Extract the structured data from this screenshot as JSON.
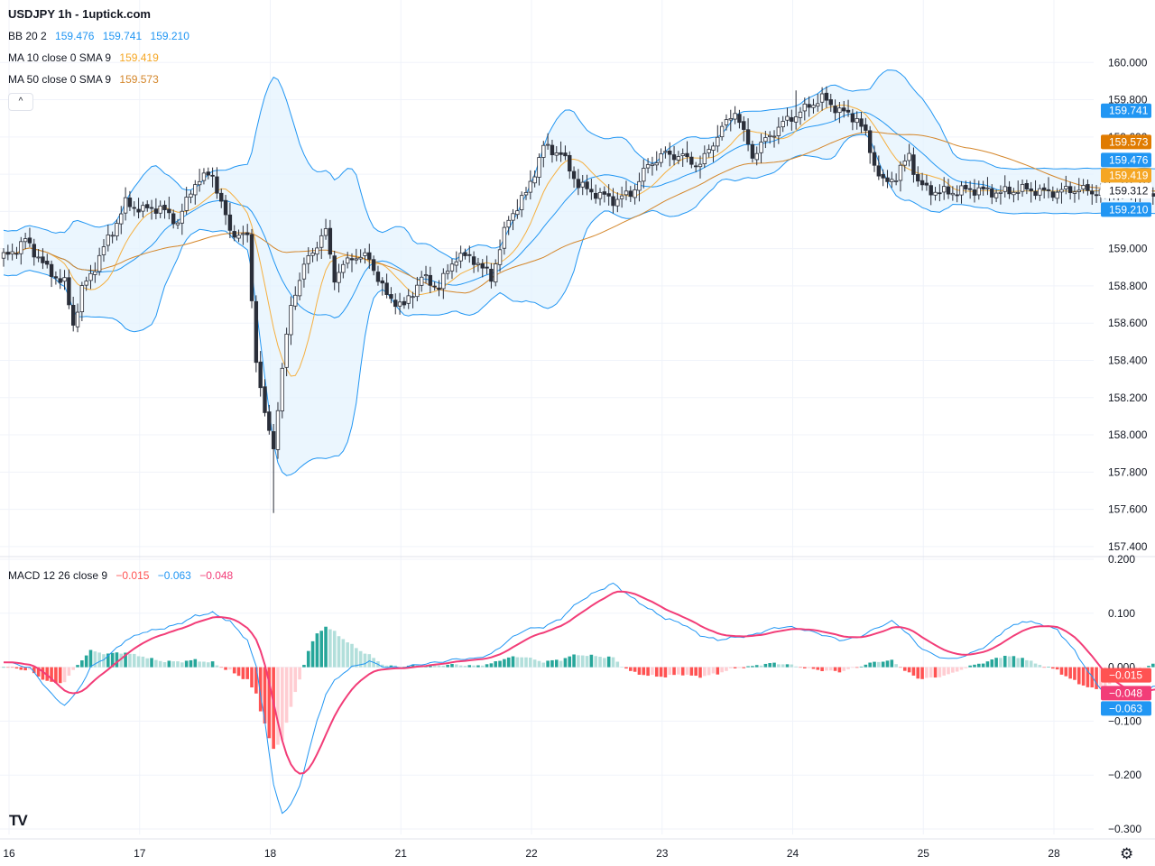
{
  "header": {
    "title": "USDJPY 1h - 1uptick.com",
    "bb": {
      "label": "BB 20 2",
      "mid": "159.476",
      "upper": "159.741",
      "lower": "159.210"
    },
    "ma10": {
      "label": "MA 10 close 0 SMA 9",
      "value": "159.419"
    },
    "ma50": {
      "label": "MA 50 close 0 SMA 9",
      "value": "159.573"
    },
    "macd": {
      "label": "MACD 12 26 close 9",
      "hist": "−0.015",
      "macd": "−0.063",
      "signal": "−0.048"
    }
  },
  "colors": {
    "up": "#ffffff",
    "down": "#2a2e39",
    "bb": "#2196f3",
    "bbFill": "#e3f2fd",
    "ma10": "#f5b041",
    "ma50": "#d4862a",
    "macdLine": "#2196f3",
    "signalLine": "#f23d78",
    "histUpStrong": "#26a69a",
    "histUpWeak": "#b2dfdb",
    "histDownStrong": "#ff5252",
    "histDownWeak": "#ffcdd2"
  },
  "chart_data": {
    "type": "candlestick",
    "price_axis": {
      "ticks": [
        "157.400",
        "157.600",
        "157.800",
        "158.000",
        "158.200",
        "158.400",
        "158.600",
        "158.800",
        "159.000",
        "159.200",
        "159.400",
        "159.600",
        "159.800",
        "160.000"
      ],
      "range": [
        157.38,
        160.2
      ]
    },
    "price_labels": [
      {
        "value": 159.741,
        "text": "159.741",
        "color": "#2196f3"
      },
      {
        "value": 159.573,
        "text": "159.573",
        "color": "#e07b00"
      },
      {
        "value": 159.476,
        "text": "159.476",
        "color": "#2196f3"
      },
      {
        "value": 159.419,
        "text": "159.419",
        "color": "#f5a623"
      },
      {
        "value": 159.312,
        "text": "159.312",
        "color": "#ffffff"
      },
      {
        "value": 159.21,
        "text": "159.210",
        "color": "#2196f3"
      }
    ],
    "macd_axis": {
      "ticks": [
        "0.200",
        "0.100",
        "0.000",
        "−0.100",
        "−0.200",
        "−0.300"
      ],
      "range": [
        -0.31,
        0.2
      ]
    },
    "macd_labels": [
      {
        "value": -0.015,
        "text": "−0.015",
        "color": "#ff5252"
      },
      {
        "value": -0.048,
        "text": "−0.048",
        "color": "#f23d78"
      },
      {
        "value": -0.063,
        "text": "−0.063",
        "color": "#2196f3"
      }
    ],
    "time_axis": [
      "16",
      "17",
      "18",
      "21",
      "22",
      "23",
      "24",
      "25",
      "28"
    ],
    "anchors": {
      "close": [
        [
          0,
          158.95
        ],
        [
          5,
          159.05
        ],
        [
          10,
          158.88
        ],
        [
          14,
          158.82
        ],
        [
          16,
          158.6
        ],
        [
          18,
          158.78
        ],
        [
          20,
          158.85
        ],
        [
          24,
          159.05
        ],
        [
          28,
          159.25
        ],
        [
          32,
          159.2
        ],
        [
          36,
          159.22
        ],
        [
          40,
          159.15
        ],
        [
          44,
          159.35
        ],
        [
          48,
          159.4
        ],
        [
          52,
          159.1
        ],
        [
          56,
          159.05
        ],
        [
          58,
          158.4
        ],
        [
          60,
          158.1
        ],
        [
          62,
          157.95
        ],
        [
          64,
          158.35
        ],
        [
          66,
          158.7
        ],
        [
          70,
          158.95
        ],
        [
          74,
          159.1
        ],
        [
          76,
          158.85
        ],
        [
          80,
          158.95
        ],
        [
          84,
          158.95
        ],
        [
          88,
          158.75
        ],
        [
          92,
          158.68
        ],
        [
          96,
          158.85
        ],
        [
          100,
          158.8
        ],
        [
          104,
          158.95
        ],
        [
          108,
          158.95
        ],
        [
          112,
          158.85
        ],
        [
          116,
          159.15
        ],
        [
          120,
          159.3
        ],
        [
          124,
          159.55
        ],
        [
          128,
          159.5
        ],
        [
          132,
          159.35
        ],
        [
          136,
          159.3
        ],
        [
          140,
          159.25
        ],
        [
          144,
          159.3
        ],
        [
          148,
          159.45
        ],
        [
          152,
          159.5
        ],
        [
          156,
          159.5
        ],
        [
          160,
          159.45
        ],
        [
          164,
          159.6
        ],
        [
          168,
          159.75
        ],
        [
          172,
          159.5
        ],
        [
          176,
          159.6
        ],
        [
          180,
          159.7
        ],
        [
          184,
          159.75
        ],
        [
          188,
          159.8
        ],
        [
          192,
          159.75
        ],
        [
          196,
          159.7
        ],
        [
          198,
          159.6
        ],
        [
          200,
          159.45
        ],
        [
          202,
          159.35
        ],
        [
          205,
          159.4
        ],
        [
          208,
          159.5
        ],
        [
          210,
          159.35
        ],
        [
          212,
          159.31
        ]
      ],
      "macd": [
        [
          0,
          0.01
        ],
        [
          3,
          0.005
        ],
        [
          6,
          0.0
        ],
        [
          9,
          -0.03
        ],
        [
          12,
          -0.06
        ],
        [
          14,
          -0.07
        ],
        [
          16,
          -0.055
        ],
        [
          18,
          -0.03
        ],
        [
          20,
          0.0
        ],
        [
          24,
          0.02
        ],
        [
          28,
          0.05
        ],
        [
          32,
          0.065
        ],
        [
          36,
          0.07
        ],
        [
          40,
          0.08
        ],
        [
          44,
          0.095
        ],
        [
          48,
          0.1
        ],
        [
          52,
          0.085
        ],
        [
          56,
          0.05
        ],
        [
          58,
          0.0
        ],
        [
          60,
          -0.1
        ],
        [
          62,
          -0.22
        ],
        [
          64,
          -0.27
        ],
        [
          66,
          -0.255
        ],
        [
          68,
          -0.22
        ],
        [
          70,
          -0.16
        ],
        [
          72,
          -0.1
        ],
        [
          74,
          -0.05
        ],
        [
          76,
          -0.025
        ],
        [
          78,
          -0.01
        ],
        [
          80,
          0.0
        ],
        [
          84,
          0.01
        ],
        [
          88,
          0.0
        ],
        [
          92,
          0.0
        ],
        [
          96,
          0.005
        ],
        [
          100,
          0.01
        ],
        [
          104,
          0.015
        ],
        [
          108,
          0.015
        ],
        [
          112,
          0.025
        ],
        [
          116,
          0.05
        ],
        [
          120,
          0.07
        ],
        [
          124,
          0.075
        ],
        [
          128,
          0.09
        ],
        [
          132,
          0.12
        ],
        [
          136,
          0.14
        ],
        [
          140,
          0.155
        ],
        [
          144,
          0.13
        ],
        [
          148,
          0.11
        ],
        [
          152,
          0.09
        ],
        [
          156,
          0.08
        ],
        [
          160,
          0.06
        ],
        [
          164,
          0.05
        ],
        [
          168,
          0.055
        ],
        [
          172,
          0.06
        ],
        [
          176,
          0.07
        ],
        [
          180,
          0.075
        ],
        [
          184,
          0.07
        ],
        [
          188,
          0.06
        ],
        [
          192,
          0.05
        ],
        [
          196,
          0.055
        ],
        [
          200,
          0.07
        ],
        [
          204,
          0.085
        ],
        [
          206,
          0.075
        ],
        [
          208,
          0.06
        ],
        [
          210,
          0.04
        ],
        [
          214,
          0.02
        ],
        [
          218,
          0.015
        ],
        [
          222,
          0.025
        ],
        [
          226,
          0.04
        ],
        [
          230,
          0.07
        ],
        [
          234,
          0.085
        ],
        [
          238,
          0.08
        ],
        [
          242,
          0.07
        ],
        [
          246,
          0.03
        ],
        [
          250,
          -0.02
        ],
        [
          252,
          -0.04
        ],
        [
          254,
          -0.05
        ],
        [
          258,
          -0.055
        ],
        [
          262,
          -0.045
        ],
        [
          266,
          -0.03
        ],
        [
          270,
          -0.06
        ],
        [
          272,
          -0.063
        ]
      ]
    },
    "last_bar_index": 272
  }
}
